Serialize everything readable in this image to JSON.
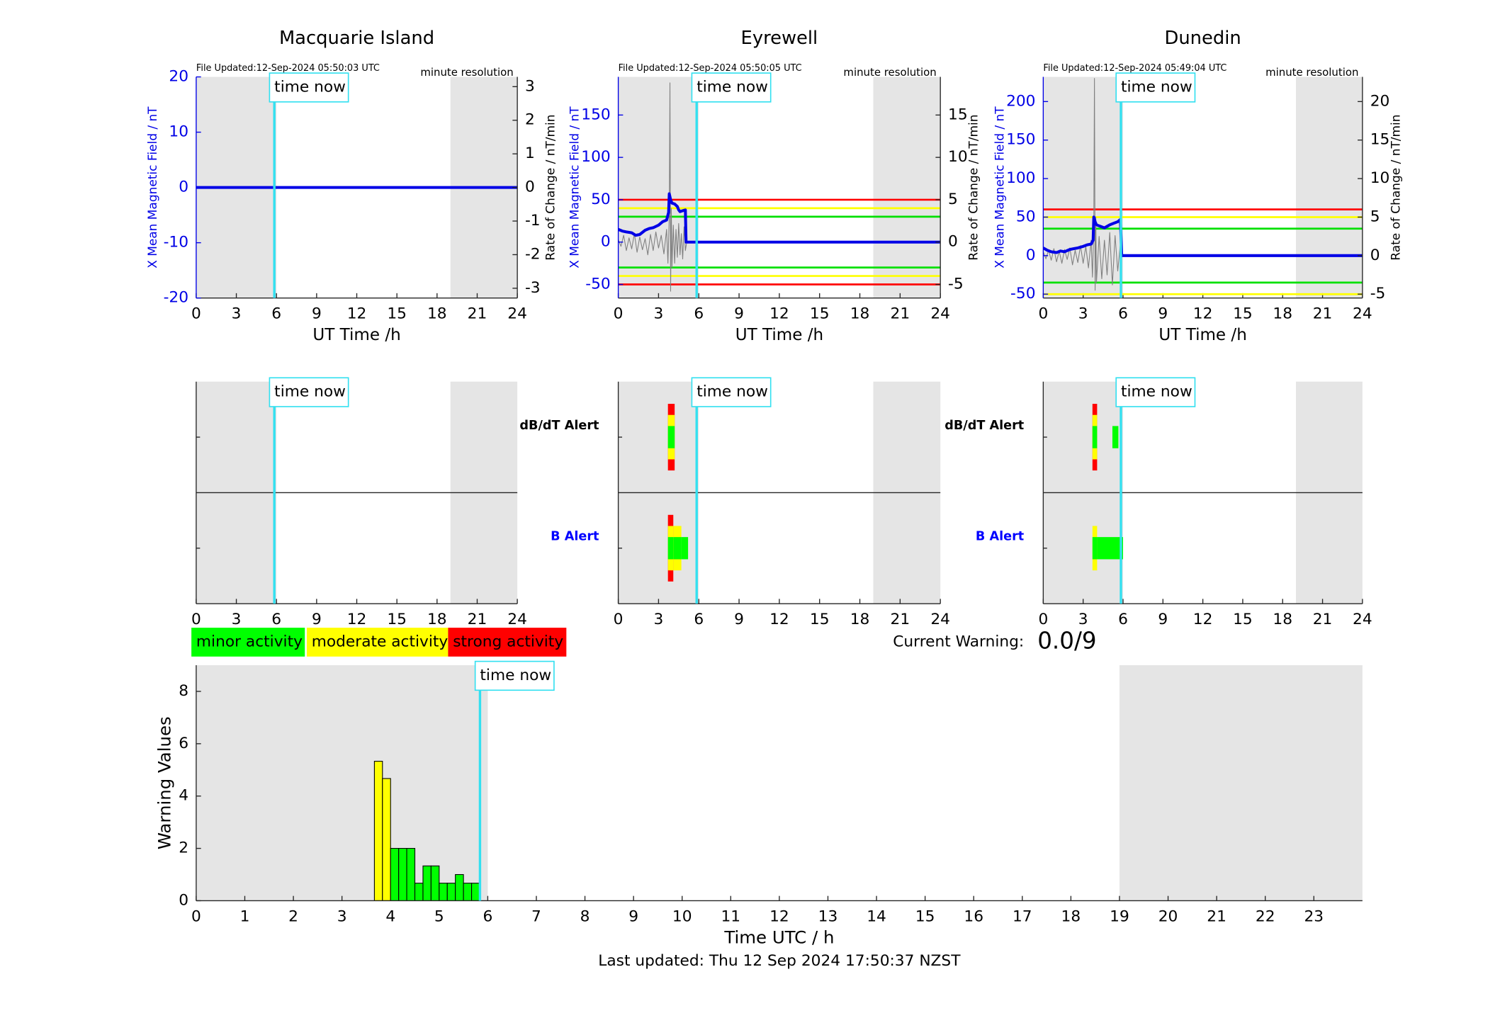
{
  "chart_data": [
    {
      "type": "line",
      "title": "Macquarie Island",
      "file_updated": "File Updated:12-Sep-2024 05:50:03 UTC",
      "resolution": "minute resolution",
      "annotation": {
        "text": "time now",
        "x": 5.84
      },
      "shaded_x": [
        [
          0,
          6
        ],
        [
          19,
          24
        ]
      ],
      "xlabel": "UT Time /h",
      "ylabel": "X Mean Magnetic Field / nT",
      "y2label": "Rate of Change / nT/min",
      "xlim": [
        0,
        24
      ],
      "xticks": [
        0,
        3,
        6,
        9,
        12,
        15,
        18,
        21,
        24
      ],
      "ylim": [
        -20,
        20
      ],
      "yticks": [
        -20,
        -10,
        0,
        10,
        20
      ],
      "y2lim": [
        -3.29,
        3.29
      ],
      "y2ticks": [
        -3,
        -2,
        -1,
        0,
        1,
        2,
        3
      ],
      "thresholds": [],
      "series": [
        {
          "color": "#808080",
          "axis": "y2",
          "x": [
            0,
            24
          ],
          "values": [
            0,
            0
          ]
        },
        {
          "color": "#0000e6",
          "axis": "y",
          "x": [
            0,
            24
          ],
          "values": [
            0,
            0
          ]
        }
      ]
    },
    {
      "type": "line",
      "title": "Eyrewell",
      "file_updated": "File Updated:12-Sep-2024 05:50:05 UTC",
      "resolution": "minute resolution",
      "annotation": {
        "text": "time now",
        "x": 5.84
      },
      "shaded_x": [
        [
          0,
          6
        ],
        [
          19,
          24
        ]
      ],
      "xlabel": "UT Time /h",
      "ylabel": "X Mean Magnetic Field / nT",
      "y2label": "Rate of Change / nT/min",
      "xlim": [
        0,
        24
      ],
      "xticks": [
        0,
        3,
        6,
        9,
        12,
        15,
        18,
        21,
        24
      ],
      "ylim": [
        -66,
        195
      ],
      "yticks": [
        -50,
        0,
        50,
        100,
        150
      ],
      "y2lim": [
        -6.6,
        19.5
      ],
      "y2ticks": [
        -5,
        0,
        5,
        10,
        15
      ],
      "thresholds": [
        {
          "value": 50,
          "color": "#ff0000"
        },
        {
          "value": 40,
          "color": "#ffff00"
        },
        {
          "value": 30,
          "color": "#00e000"
        },
        {
          "value": -30,
          "color": "#00e000"
        },
        {
          "value": -40,
          "color": "#ffff00"
        },
        {
          "value": -50,
          "color": "#ff0000"
        }
      ],
      "series": [
        {
          "color": "#808080",
          "axis": "y2",
          "x": [
            0,
            0.2,
            0.4,
            0.6,
            0.8,
            1,
            1.2,
            1.4,
            1.6,
            1.8,
            2,
            2.2,
            2.4,
            2.6,
            2.8,
            3,
            3.2,
            3.4,
            3.6,
            3.7,
            3.8,
            3.85,
            3.9,
            3.95,
            4,
            4.1,
            4.2,
            4.3,
            4.4,
            4.5,
            4.6,
            4.7,
            4.8,
            4.9,
            5.0,
            5.1
          ],
          "values": [
            0.3,
            -0.5,
            0.8,
            -1,
            0.5,
            -0.8,
            1,
            -1.2,
            0.6,
            -0.9,
            0.4,
            -1.5,
            0.9,
            -1,
            1.2,
            -0.7,
            0.8,
            -1.4,
            1.5,
            -2.5,
            3,
            18.8,
            -5.8,
            4,
            -3,
            2,
            -2.5,
            1.5,
            -1.8,
            2.2,
            -1.5,
            1,
            -2,
            1.8,
            -1,
            0
          ]
        },
        {
          "color": "#0000e6",
          "axis": "y",
          "x": [
            0,
            0.3,
            0.6,
            1,
            1.3,
            1.6,
            2,
            2.3,
            2.6,
            3,
            3.3,
            3.6,
            3.75,
            3.8,
            3.9,
            4.0,
            4.2,
            4.4,
            4.5,
            4.6,
            4.8,
            5.0,
            5.05,
            24
          ],
          "values": [
            15,
            13,
            12,
            11,
            8,
            9,
            14,
            16,
            17,
            20,
            24,
            26,
            35,
            57,
            50,
            46,
            45,
            42,
            38,
            36,
            37,
            38,
            0,
            0
          ]
        }
      ]
    },
    {
      "type": "line",
      "title": "Dunedin",
      "file_updated": "File Updated:12-Sep-2024 05:49:04 UTC",
      "resolution": "minute resolution",
      "annotation": {
        "text": "time now",
        "x": 5.84
      },
      "shaded_x": [
        [
          0,
          6
        ],
        [
          19,
          24
        ]
      ],
      "xlabel": "UT Time /h",
      "ylabel": "X Mean Magnetic Field / nT",
      "y2label": "Rate of Change / nT/min",
      "xlim": [
        0,
        24
      ],
      "xticks": [
        0,
        3,
        6,
        9,
        12,
        15,
        18,
        21,
        24
      ],
      "ylim": [
        -55,
        232
      ],
      "yticks": [
        -50,
        0,
        50,
        100,
        150,
        200
      ],
      "y2lim": [
        -5.5,
        23.2
      ],
      "y2ticks": [
        -5,
        0,
        5,
        10,
        15,
        20
      ],
      "thresholds": [
        {
          "value": 60,
          "color": "#ff0000"
        },
        {
          "value": 50,
          "color": "#ffff00"
        },
        {
          "value": 35,
          "color": "#00e000"
        },
        {
          "value": -35,
          "color": "#00e000"
        },
        {
          "value": -50,
          "color": "#ffff00"
        }
      ],
      "series": [
        {
          "color": "#808080",
          "axis": "y2",
          "x": [
            0,
            0.2,
            0.4,
            0.6,
            0.8,
            1,
            1.2,
            1.4,
            1.6,
            1.8,
            2,
            2.2,
            2.4,
            2.6,
            2.8,
            3,
            3.2,
            3.4,
            3.6,
            3.7,
            3.8,
            3.85,
            3.9,
            3.95,
            4,
            4.2,
            4.4,
            4.6,
            4.8,
            5,
            5.2,
            5.4,
            5.6,
            5.8,
            5.9
          ],
          "values": [
            0.5,
            -0.4,
            0.7,
            -0.6,
            0.9,
            -0.8,
            0.6,
            -1,
            0.8,
            -0.5,
            1,
            -1.2,
            0.7,
            -0.9,
            1.3,
            -1,
            1.2,
            -1.6,
            2,
            -2.8,
            3.5,
            23,
            -4.5,
            5,
            -3.5,
            2.5,
            -3,
            2,
            -2.5,
            3,
            -3.8,
            2.6,
            -2,
            1.5,
            0
          ]
        },
        {
          "color": "#0000e6",
          "axis": "y",
          "x": [
            0,
            0.3,
            0.6,
            1,
            1.3,
            1.6,
            2,
            2.3,
            2.6,
            3,
            3.3,
            3.6,
            3.75,
            3.8,
            3.9,
            4.0,
            4.3,
            4.6,
            5,
            5.3,
            5.6,
            5.8,
            5.9,
            24
          ],
          "values": [
            10,
            7,
            5,
            4,
            6,
            5,
            8,
            9,
            10,
            12,
            14,
            15,
            20,
            50,
            44,
            40,
            38,
            36,
            40,
            42,
            44,
            47,
            0,
            0
          ]
        }
      ]
    },
    {
      "type": "alert",
      "annotation": {
        "text": "time now",
        "x": 5.84
      },
      "shaded_x": [
        [
          0,
          6
        ],
        [
          19,
          24
        ]
      ],
      "xlim": [
        0,
        24
      ],
      "xticks": [
        0,
        3,
        6,
        9,
        12,
        15,
        18,
        21,
        24
      ],
      "categories": [
        null,
        null
      ],
      "category_colors": [
        "#000000",
        "#0000ff"
      ],
      "level_colors": [
        "#00ff00",
        "#ffff00",
        "#ff0000"
      ],
      "segments": []
    },
    {
      "type": "alert",
      "annotation": {
        "text": "time now",
        "x": 5.84
      },
      "shaded_x": [
        [
          0,
          6
        ],
        [
          19,
          24
        ]
      ],
      "xlim": [
        0,
        24
      ],
      "xticks": [
        0,
        3,
        6,
        9,
        12,
        15,
        18,
        21,
        24
      ],
      "categories": [
        "dB/dT Alert",
        "B Alert"
      ],
      "category_colors": [
        "#000000",
        "#0000ff"
      ],
      "level_colors": [
        "#00ff00",
        "#ffff00",
        "#ff0000"
      ],
      "segments": [
        {
          "category": 0,
          "start": 3.7,
          "end": 4.2,
          "level": 3
        },
        {
          "category": 1,
          "start": 3.7,
          "end": 4.1,
          "level": 3
        },
        {
          "category": 1,
          "start": 4.1,
          "end": 4.7,
          "level": 2
        },
        {
          "category": 1,
          "start": 4.7,
          "end": 5.2,
          "level": 1
        }
      ]
    },
    {
      "type": "alert",
      "annotation": {
        "text": "time now",
        "x": 5.84
      },
      "shaded_x": [
        [
          0,
          6
        ],
        [
          19,
          24
        ]
      ],
      "xlim": [
        0,
        24
      ],
      "xticks": [
        0,
        3,
        6,
        9,
        12,
        15,
        18,
        21,
        24
      ],
      "categories": [
        "dB/dT Alert",
        "B Alert"
      ],
      "category_colors": [
        "#000000",
        "#0000ff"
      ],
      "level_colors": [
        "#00ff00",
        "#ffff00",
        "#ff0000"
      ],
      "segments": [
        {
          "category": 0,
          "start": 3.7,
          "end": 4.05,
          "level": 3
        },
        {
          "category": 0,
          "start": 5.2,
          "end": 5.65,
          "level": 1
        },
        {
          "category": 1,
          "start": 3.7,
          "end": 4.05,
          "level": 2
        },
        {
          "category": 1,
          "start": 4.05,
          "end": 6.0,
          "level": 1
        }
      ]
    },
    {
      "type": "histogram",
      "xlabel": "Time UTC / h",
      "ylabel": "Warning Values",
      "footer": "Last updated: Thu 12 Sep 2024 17:50:37 NZST",
      "annotation": {
        "text": "time now",
        "x": 5.84
      },
      "shaded_x": [
        [
          0,
          6
        ],
        [
          19,
          24
        ]
      ],
      "xlim": [
        0,
        24
      ],
      "xticks": [
        0,
        1,
        2,
        3,
        4,
        5,
        6,
        7,
        8,
        9,
        10,
        11,
        12,
        13,
        14,
        15,
        16,
        17,
        18,
        19,
        20,
        21,
        22,
        23
      ],
      "ylim": [
        0,
        9
      ],
      "yticks": [
        0,
        2,
        4,
        6,
        8
      ],
      "bins": [
        3.667,
        3.833,
        4,
        4.167,
        4.333,
        4.5,
        4.667,
        4.833,
        5,
        5.167,
        5.333,
        5.5,
        5.667,
        5.833
      ],
      "values": [
        5.33,
        4.67,
        2,
        2,
        2,
        0.67,
        1.33,
        1.33,
        0.67,
        0.67,
        1,
        0.67,
        0.67
      ],
      "colors": [
        "#ffff00",
        "#ffff00",
        "#00ff00",
        "#00ff00",
        "#00ff00",
        "#00ff00",
        "#00ff00",
        "#00ff00",
        "#00ff00",
        "#00ff00",
        "#00ff00",
        "#00ff00",
        "#00ff00"
      ],
      "legend": [
        {
          "name": "minor activity",
          "color": "#00ff00"
        },
        {
          "name": "moderate activity",
          "color": "#ffff00"
        },
        {
          "name": "strong activity",
          "color": "#ff0000"
        }
      ],
      "current_warning_label": "Current Warning:",
      "current_warning": "0.0/9"
    }
  ]
}
